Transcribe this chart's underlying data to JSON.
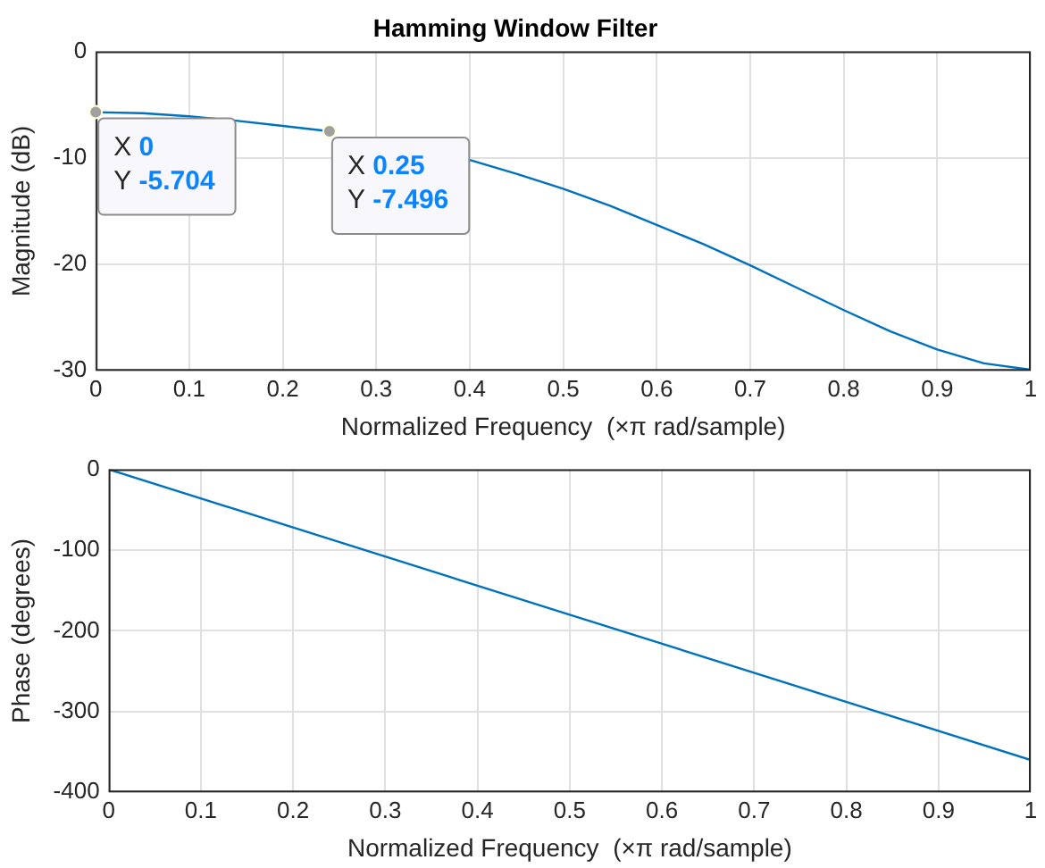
{
  "chart_data": [
    {
      "type": "line",
      "title": "Hamming Window Filter",
      "xlabel": "Normalized Frequency  (×π rad/sample)",
      "ylabel": "Magnitude (dB)",
      "color": "#0072bd",
      "x": [
        0,
        0.05,
        0.1,
        0.15,
        0.2,
        0.25,
        0.3,
        0.35,
        0.4,
        0.45,
        0.5,
        0.55,
        0.6,
        0.65,
        0.7,
        0.75,
        0.8,
        0.85,
        0.9,
        0.95,
        1
      ],
      "values": [
        -5.704,
        -5.8,
        -6.1,
        -6.5,
        -7.0,
        -7.496,
        null,
        null,
        -10.2,
        -11.5,
        -12.9,
        -14.5,
        -16.3,
        -18.1,
        -20.1,
        -22.2,
        -24.3,
        -26.3,
        -28.0,
        -29.3,
        -29.9
      ],
      "xlim": [
        0,
        1
      ],
      "ylim": [
        -30,
        0
      ],
      "xticks": [
        0,
        0.1,
        0.2,
        0.3,
        0.4,
        0.5,
        0.6,
        0.7,
        0.8,
        0.9,
        1
      ],
      "yticks": [
        -30,
        -20,
        -10,
        0
      ],
      "grid": true,
      "annotations": [
        {
          "text": "X 0\nY -5.704",
          "x": 0,
          "y": -5.704
        },
        {
          "text": "X 0.25\nY -7.496",
          "x": 0.25,
          "y": -7.496
        }
      ]
    },
    {
      "type": "line",
      "xlabel": "Normalized Frequency  (×π rad/sample)",
      "ylabel": "Phase (degrees)",
      "color": "#0072bd",
      "x": [
        0,
        0.5,
        1
      ],
      "values": [
        0,
        -180,
        -360
      ],
      "xlim": [
        0,
        1
      ],
      "ylim": [
        -400,
        0
      ],
      "xticks": [
        0,
        0.1,
        0.2,
        0.3,
        0.4,
        0.5,
        0.6,
        0.7,
        0.8,
        0.9,
        1
      ],
      "yticks": [
        -400,
        -300,
        -200,
        -100,
        0
      ],
      "grid": true
    }
  ]
}
